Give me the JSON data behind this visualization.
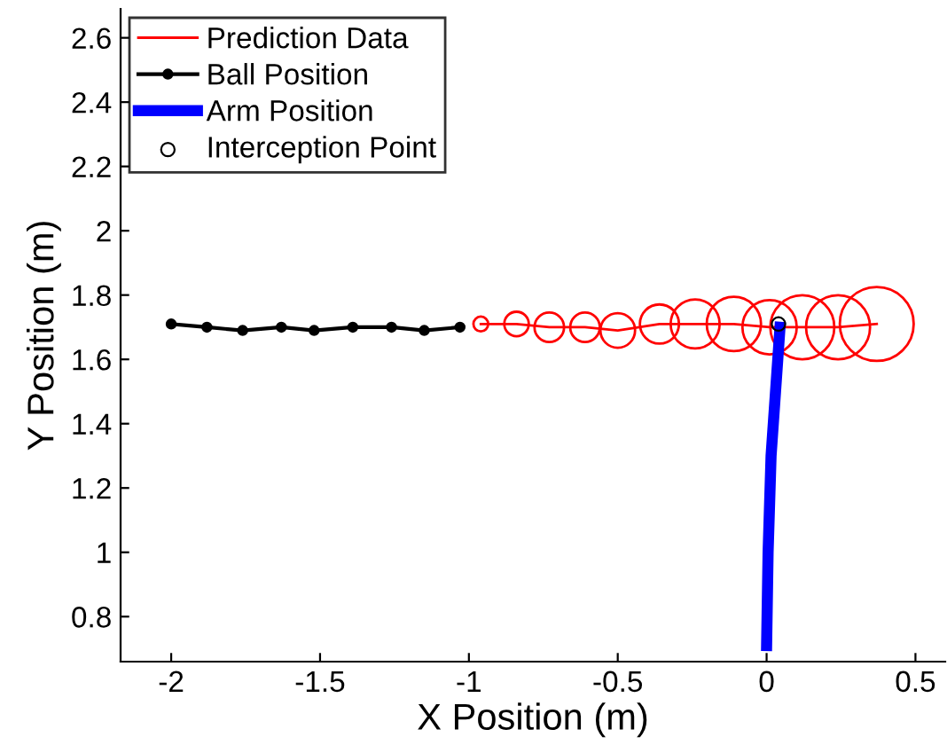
{
  "chart_data": {
    "type": "line",
    "xlabel": "X Position (m)",
    "ylabel": "Y Position (m)",
    "xlim": [
      -2.17,
      0.6
    ],
    "xticks": [
      -2,
      -1.5,
      -1,
      -0.5,
      0,
      0.5
    ],
    "ylim": [
      0.66,
      2.69
    ],
    "yticks": [
      0.8,
      1,
      1.2,
      1.4,
      1.6,
      1.8,
      2,
      2.2,
      2.4,
      2.6
    ],
    "grid": false,
    "legend": "top left",
    "series": [
      {
        "name": "Prediction Data",
        "color": "#ff0000",
        "marker": "none",
        "x": [
          -0.96,
          -0.84,
          -0.73,
          -0.61,
          -0.5,
          -0.36,
          -0.24,
          -0.11,
          0.01,
          0.12,
          0.24,
          0.37
        ],
        "values": [
          1.71,
          1.71,
          1.7,
          1.7,
          1.69,
          1.71,
          1.71,
          1.71,
          1.7,
          1.7,
          1.7,
          1.71
        ]
      },
      {
        "type": "bubble",
        "color": "#ff0000",
        "x": [
          -0.96,
          -0.84,
          -0.73,
          -0.61,
          -0.5,
          -0.36,
          -0.24,
          -0.11,
          0.01,
          0.12,
          0.24,
          0.37
        ],
        "values": [
          1.71,
          1.71,
          1.7,
          1.7,
          1.69,
          1.71,
          1.71,
          1.71,
          1.7,
          1.7,
          1.7,
          1.71
        ],
        "sizes": [
          0.04,
          0.11,
          0.16,
          0.16,
          0.22,
          0.28,
          0.44,
          0.54,
          0.54,
          0.75,
          0.75,
          1
        ]
      },
      {
        "name": "Ball Position",
        "color": "#000000",
        "marker": "circle",
        "x": [
          -2,
          -1.88,
          -1.76,
          -1.63,
          -1.52,
          -1.39,
          -1.26,
          -1.15,
          -1.03
        ],
        "values": [
          1.71,
          1.7,
          1.69,
          1.7,
          1.69,
          1.7,
          1.7,
          1.69,
          1.7
        ]
      },
      {
        "name": "Arm Position",
        "color": "#0000ff",
        "marker": "none",
        "x": [
          0.0,
          0.005,
          0.015,
          0.03,
          0.045
        ],
        "values": [
          0.71,
          1.0,
          1.3,
          1.5,
          1.7
        ]
      },
      {
        "name": "Interception Point",
        "type": "scatter",
        "color": "#000000",
        "marker": "circle",
        "x": [
          0.04
        ],
        "values": [
          1.71
        ]
      }
    ]
  }
}
